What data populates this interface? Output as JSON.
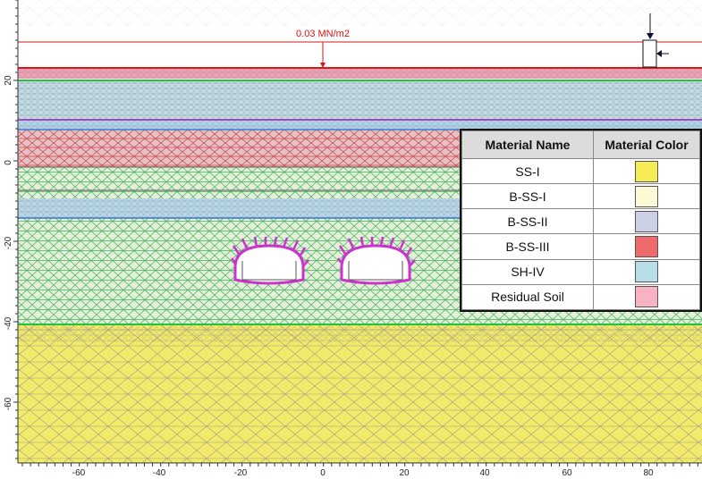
{
  "load": {
    "label": "0.03 MN/m2"
  },
  "axes": {
    "y_ticks": [
      "20",
      "0",
      "-20",
      "-40",
      "-60"
    ],
    "x_ticks": [
      "-60",
      "-40",
      "-20",
      "0",
      "20",
      "40",
      "60",
      "80"
    ]
  },
  "legend": {
    "headers": [
      "Material Name",
      "Material Color"
    ],
    "rows": [
      {
        "name": "SS-I",
        "color": "#f5ec55"
      },
      {
        "name": "B-SS-I",
        "color": "#fbf9d6"
      },
      {
        "name": "B-SS-II",
        "color": "#cbd0e6"
      },
      {
        "name": "B-SS-III",
        "color": "#ef6a6a"
      },
      {
        "name": "SH-IV",
        "color": "#b7dde8"
      },
      {
        "name": "Residual Soil",
        "color": "#f7b3c4"
      }
    ]
  },
  "colors": {
    "ss1": "#f2ea6a",
    "bss1": "#f6f2c8",
    "bss2": "#cfd3e8",
    "bss3": "#e8b4b4",
    "sh4": "#c2dfe9",
    "residual": "#f2a0b8",
    "load_red": "#d11a1a",
    "green_line": "#22c33a",
    "purple_line": "#a247c7",
    "blue_line": "#3a7bd8",
    "tunnel": "#cc33cc"
  }
}
